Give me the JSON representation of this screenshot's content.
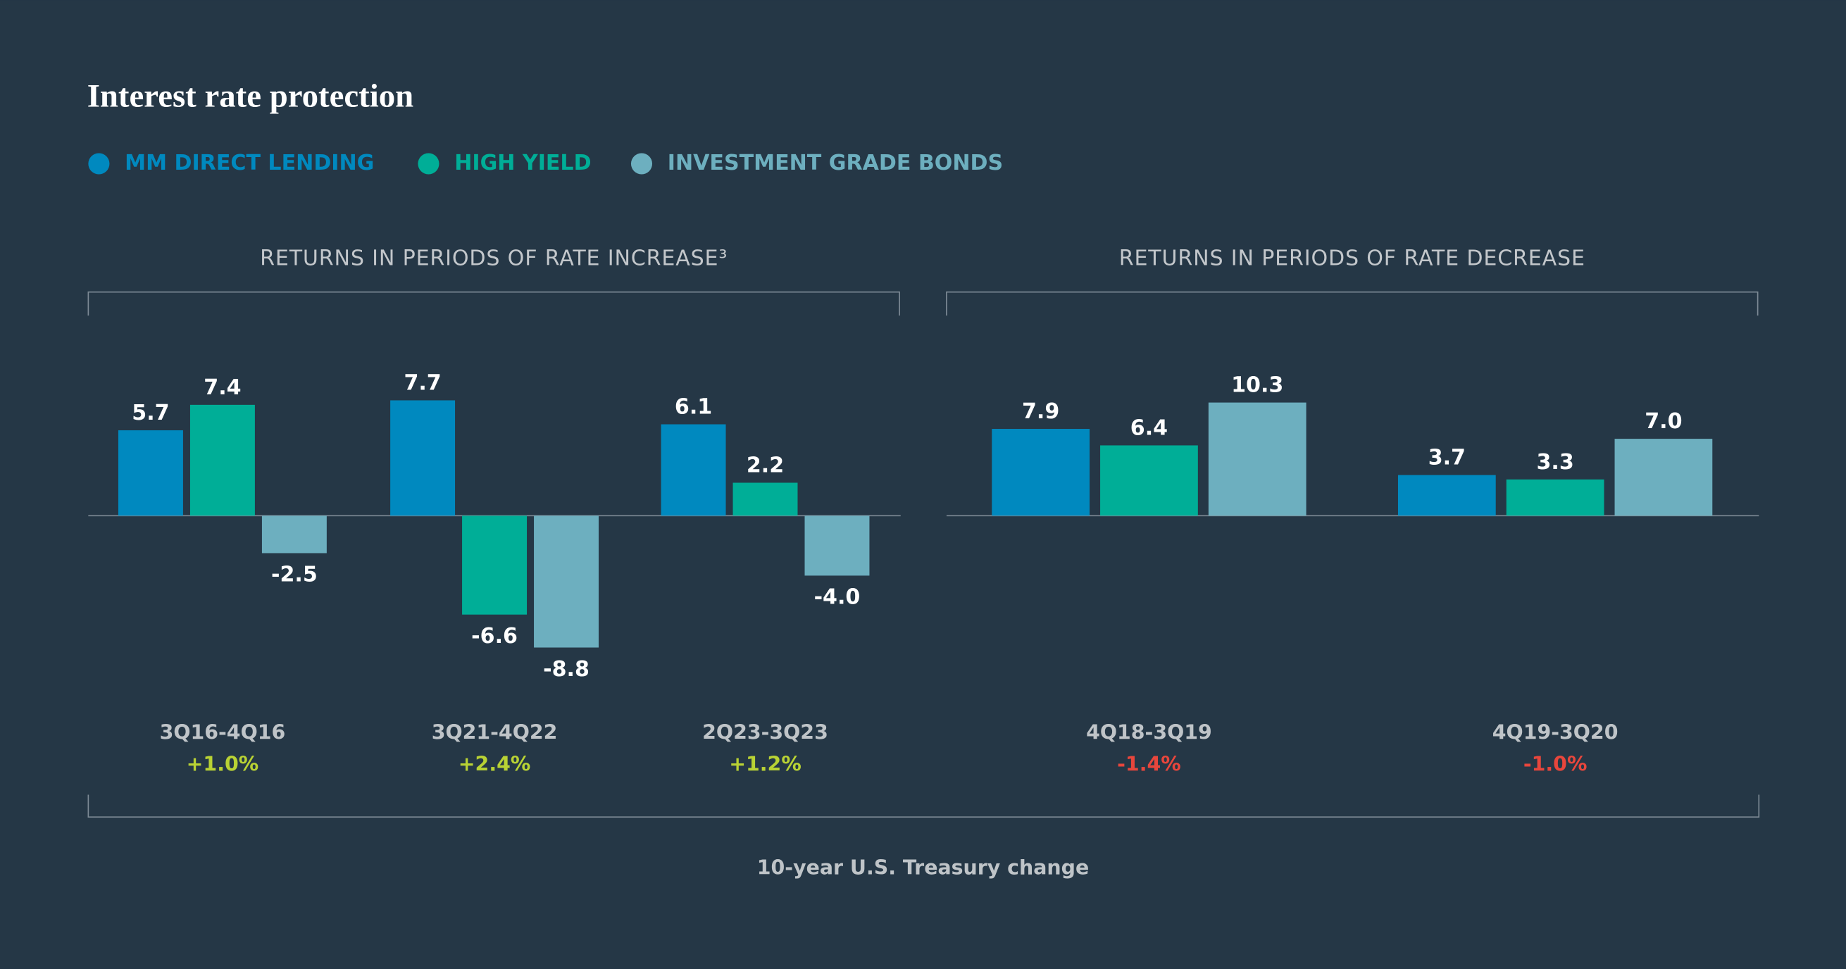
{
  "title": "Interest rate protection",
  "legend": [
    {
      "name": "MM DIRECT LENDING",
      "color": "#0089bf"
    },
    {
      "name": "HIGH YIELD",
      "color": "#00ae97"
    },
    {
      "name": "INVESTMENT GRADE BONDS",
      "color": "#6dafbf"
    }
  ],
  "footnote": "10-year U.S. Treasury change",
  "positive_color": "#b9d234",
  "negative_color": "#e8463c",
  "chart_data": [
    {
      "type": "bar",
      "title": "RETURNS IN PERIODS OF RATE INCREASE³",
      "categories": [
        "3Q16-4Q16",
        "3Q21-4Q22",
        "2Q23-3Q23"
      ],
      "treasury_change": [
        {
          "value": 1.0,
          "label": "+1.0%"
        },
        {
          "value": 2.4,
          "label": "+2.4%"
        },
        {
          "value": 1.2,
          "label": "+1.2%"
        }
      ],
      "ylim": [
        -11,
        11
      ],
      "series": [
        {
          "values": [
            5.7,
            7.7,
            6.1
          ],
          "value_labels": [
            "5.7",
            "7.7",
            "6.1"
          ]
        },
        {
          "values": [
            7.4,
            -6.6,
            2.2
          ],
          "value_labels": [
            "7.4",
            "-6.6",
            "2.2"
          ]
        },
        {
          "values": [
            -2.5,
            -8.8,
            -4.0
          ],
          "value_labels": [
            "-2.5",
            "-8.8",
            "-4.0"
          ]
        }
      ]
    },
    {
      "type": "bar",
      "title": "RETURNS IN PERIODS OF RATE DECREASE",
      "categories": [
        "4Q18-3Q19",
        "4Q19-3Q20"
      ],
      "treasury_change": [
        {
          "value": -1.4,
          "label": "-1.4%"
        },
        {
          "value": -1.0,
          "label": "-1.0%"
        }
      ],
      "ylim": [
        -15,
        15
      ],
      "series": [
        {
          "values": [
            7.9,
            3.7
          ],
          "value_labels": [
            "7.9",
            "3.7"
          ]
        },
        {
          "values": [
            6.4,
            3.3
          ],
          "value_labels": [
            "6.4",
            "3.3"
          ]
        },
        {
          "values": [
            10.3,
            7.0
          ],
          "value_labels": [
            "10.3",
            "7.0"
          ]
        }
      ]
    }
  ]
}
